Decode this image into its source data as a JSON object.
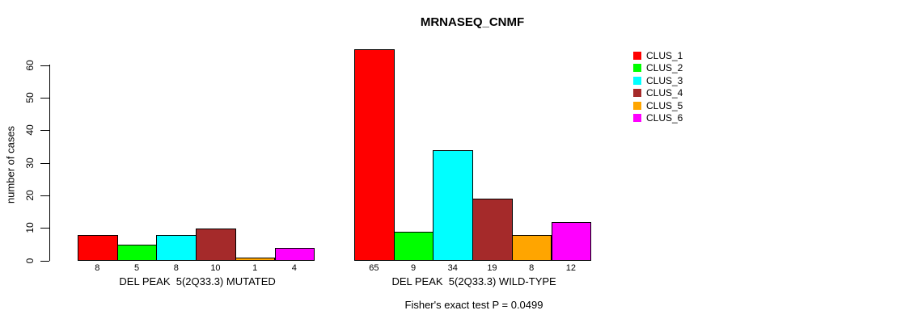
{
  "title": "MRNASEQ_CNMF",
  "chart_data": {
    "type": "bar",
    "title": "MRNASEQ_CNMF",
    "xlabel": "",
    "ylabel": "number of cases",
    "ylim": [
      0,
      65
    ],
    "yticks": [
      0,
      10,
      20,
      30,
      40,
      50,
      60
    ],
    "grid": false,
    "legend_position": "right",
    "series": [
      {
        "name": "CLUS_1",
        "color": "#FF0000"
      },
      {
        "name": "CLUS_2",
        "color": "#00FF00"
      },
      {
        "name": "CLUS_3",
        "color": "#00FFFF"
      },
      {
        "name": "CLUS_4",
        "color": "#A52A2A"
      },
      {
        "name": "CLUS_5",
        "color": "#FFA500"
      },
      {
        "name": "CLUS_6",
        "color": "#FF00FF"
      }
    ],
    "groups": [
      {
        "label": "DEL PEAK  5(2Q33.3) MUTATED",
        "values": [
          8,
          5,
          8,
          10,
          1,
          4
        ]
      },
      {
        "label": "DEL PEAK  5(2Q33.3) WILD-TYPE",
        "values": [
          65,
          9,
          34,
          19,
          8,
          12
        ]
      }
    ],
    "annotation": "Fisher's exact test P = 0.0499",
    "bar_border_color": "#000000",
    "background": "#FFFFFF"
  }
}
